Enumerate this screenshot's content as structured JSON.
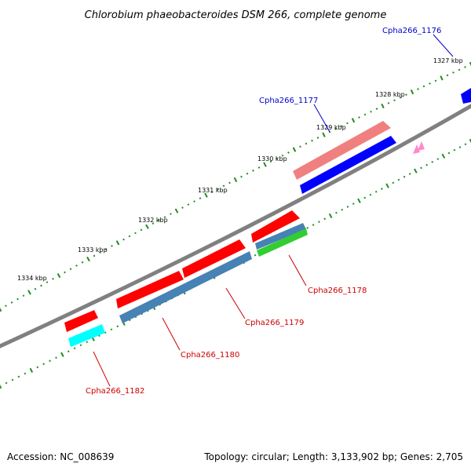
{
  "title": "Chlorobium phaeobacteroides DSM 266, complete genome",
  "kbp_ticks": [
    "1327 kbp",
    "1328 kbp",
    "1329 kbp",
    "1330 kbp",
    "1331 kbp",
    "1332 kbp",
    "1333 kbp",
    "1334 kbp"
  ],
  "gene_labels": {
    "g1176": "Cpha266_1176",
    "g1177": "Cpha266_1177",
    "g1178": "Cpha266_1178",
    "g1179": "Cpha266_1179",
    "g1180": "Cpha266_1180",
    "g1182": "Cpha266_1182"
  },
  "colors": {
    "forward_cds": "#ff0000",
    "forward_cds_light": "#f08080",
    "reverse_cds": "#0000ff",
    "reverse_steel": "#4682b4",
    "reverse_green": "#32cd32",
    "reverse_cyan": "#00ffff",
    "marker_pink": "#ff88cc",
    "backbone": "#808080",
    "tick_green": "#228b22",
    "label_blue": "#0000cc",
    "label_red": "#cc0000"
  },
  "footer": {
    "accession": "Accession: NC_008639",
    "topology": "Topology: circular; Length: 3,133,902 bp; Genes: 2,705"
  }
}
